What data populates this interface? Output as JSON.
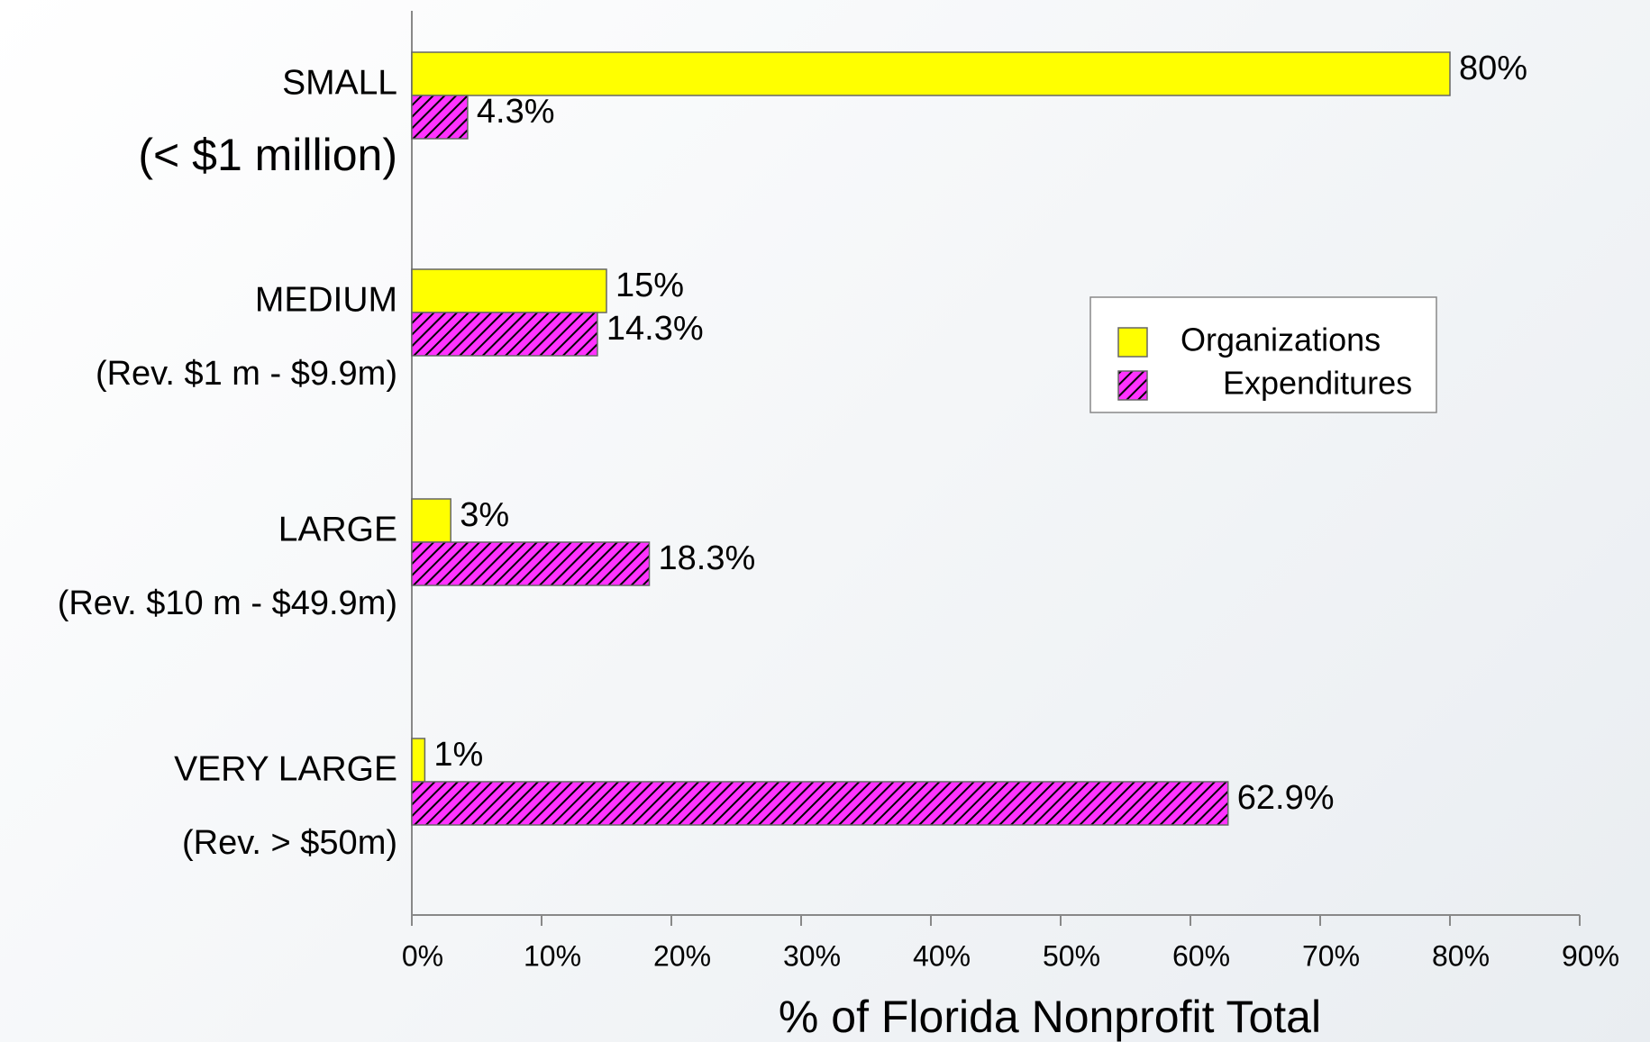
{
  "chart_data": {
    "type": "barh",
    "categories": [
      "SMALL",
      "MEDIUM",
      "LARGE",
      "VERY LARGE"
    ],
    "category_notes": [
      "(< $1 million)",
      "(Rev. $1 m - $9.9m)",
      "(Rev. $10 m - $49.9m)",
      "(Rev. > $50m)"
    ],
    "series": [
      {
        "name": "Organizations",
        "color": "#ffff00",
        "values": [
          80,
          15,
          3,
          1
        ],
        "value_labels": [
          "80%",
          "15%",
          "3%",
          "1%"
        ]
      },
      {
        "name": "Expenditures",
        "color": "#ff33ff",
        "pattern": "hatch",
        "values": [
          4.3,
          14.3,
          18.3,
          62.9
        ],
        "value_labels": [
          "4.3%",
          "14.3%",
          "18.3%",
          "62.9%"
        ]
      }
    ],
    "xlabel": "% of Florida Nonprofit Total",
    "xlim": [
      0,
      90
    ],
    "xticks": [
      {
        "value": 0,
        "label": "0%"
      },
      {
        "value": 10,
        "label": "10%"
      },
      {
        "value": 20,
        "label": "20%"
      },
      {
        "value": 30,
        "label": "30%"
      },
      {
        "value": 40,
        "label": "40%"
      },
      {
        "value": 50,
        "label": "50%"
      },
      {
        "value": 60,
        "label": "60%"
      },
      {
        "value": 70,
        "label": "70%"
      },
      {
        "value": 80,
        "label": "80%"
      },
      {
        "value": 90,
        "label": "90%"
      }
    ],
    "legend": "right"
  }
}
